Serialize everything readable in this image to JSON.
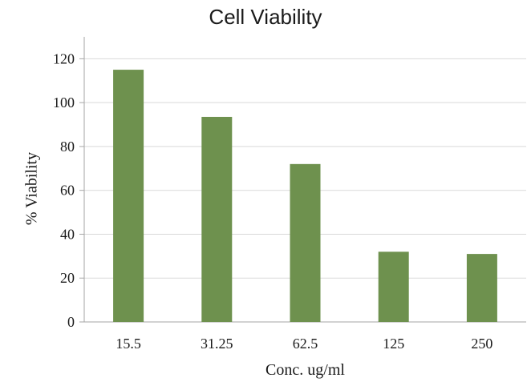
{
  "chart_data": {
    "type": "bar",
    "title": "Cell Viability",
    "xlabel": "Conc. ug/ml",
    "ylabel": "% Viability",
    "categories": [
      "15.5",
      "31.25",
      "62.5",
      "125",
      "250"
    ],
    "values": [
      115,
      93.5,
      72,
      32,
      31
    ],
    "ylim": [
      0,
      130
    ],
    "yticks": [
      0,
      20,
      40,
      60,
      80,
      100,
      120
    ],
    "grid": true,
    "colors": {
      "bar": "#6e914e",
      "grid": "#d9d9d9",
      "axis": "#a6a6a6",
      "text": "#1a1a1a"
    }
  }
}
